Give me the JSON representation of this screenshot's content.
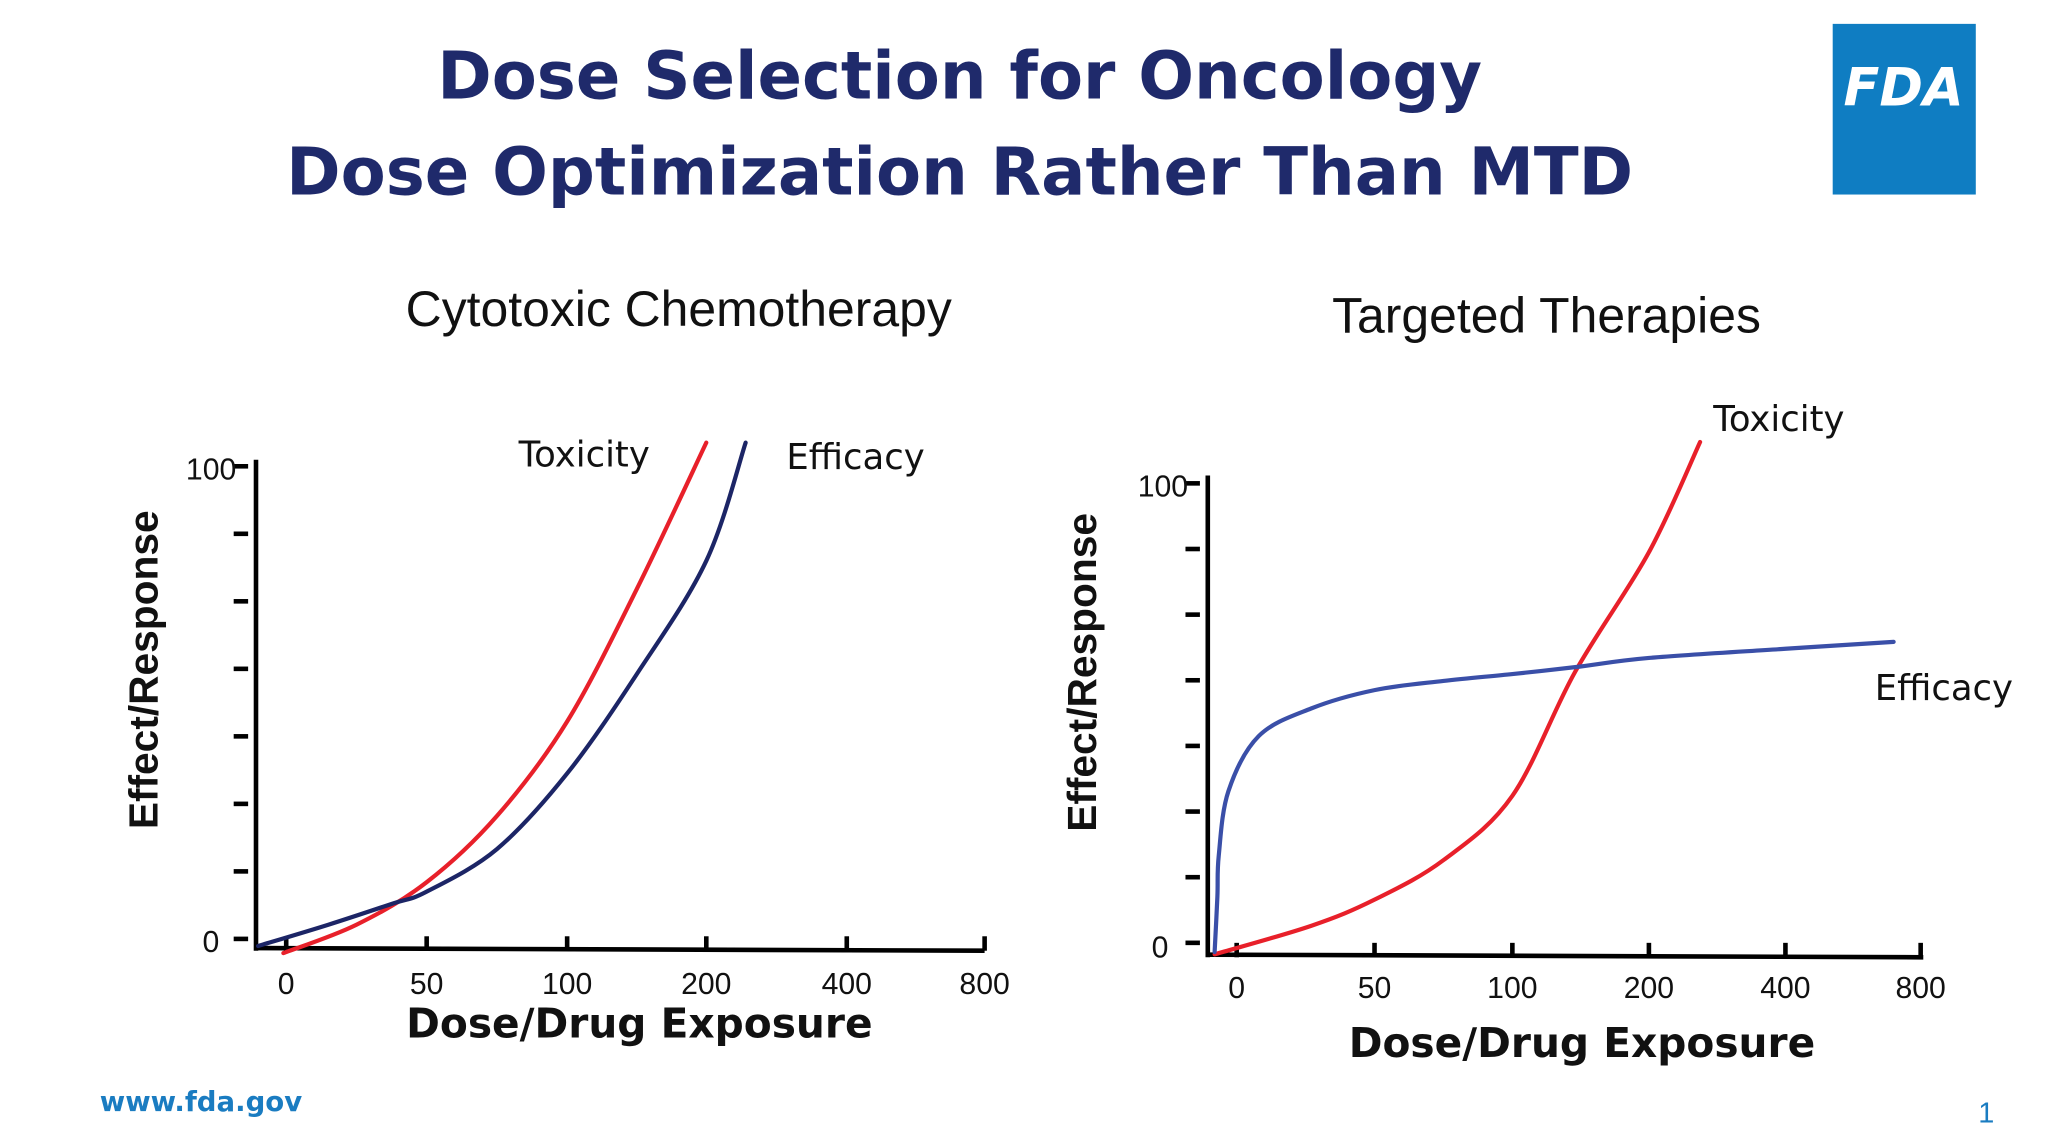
{
  "slide": {
    "title_lines": [
      "Dose Selection for Oncology",
      "Dose Optimization Rather Than MTD"
    ],
    "logo_text": "FDA",
    "logo_color": "#0f7dc2",
    "title_color": "#1f2a6b",
    "footer_url": "www.fda.gov",
    "page_number": "1"
  },
  "chart_data": [
    {
      "type": "line",
      "title": "Cytotoxic Chemotherapy",
      "xlabel": "Dose/Drug Exposure",
      "ylabel": "Effect/Response",
      "x_ticks": [
        "0",
        "50",
        "100",
        "200",
        "400",
        "800"
      ],
      "x_tick_values": [
        0,
        50,
        100,
        200,
        400,
        800
      ],
      "y_ticks": [
        "0",
        "100"
      ],
      "ylim": [
        0,
        100
      ],
      "y_minor_ticks": 7,
      "grid": false,
      "series": [
        {
          "name": "Toxicity",
          "color": "#e8202a",
          "points": [
            [
              -1,
              -3
            ],
            [
              25,
              3
            ],
            [
              50,
              12
            ],
            [
              75,
              26
            ],
            [
              100,
              46
            ],
            [
              150,
              74
            ],
            [
              200,
              105
            ]
          ]
        },
        {
          "name": "Efficacy",
          "color": "#1c2566",
          "points": [
            [
              -10,
              -1.5
            ],
            [
              15,
              3
            ],
            [
              38,
              7.5
            ],
            [
              50,
              10
            ],
            [
              75,
              19
            ],
            [
              100,
              35
            ],
            [
              150,
              56
            ],
            [
              200,
              80
            ],
            [
              256,
              105
            ]
          ]
        }
      ]
    },
    {
      "type": "line",
      "title": "Targeted Therapies",
      "xlabel": "Dose/Drug Exposure",
      "ylabel": "Effect/Response",
      "x_ticks": [
        "0",
        "50",
        "100",
        "200",
        "400",
        "800"
      ],
      "x_tick_values": [
        0,
        50,
        100,
        200,
        400,
        800
      ],
      "y_ticks": [
        "0",
        "100"
      ],
      "ylim": [
        0,
        100
      ],
      "y_minor_ticks": 7,
      "grid": false,
      "series": [
        {
          "name": "Toxicity",
          "color": "#e8202a",
          "points": [
            [
              -8,
              -2.5
            ],
            [
              27,
              3.7
            ],
            [
              50,
              9.4
            ],
            [
              75,
              18
            ],
            [
              100,
              32
            ],
            [
              146,
              59
            ],
            [
              200,
              85
            ],
            [
              275,
              109
            ]
          ]
        },
        {
          "name": "Efficacy",
          "color": "#3a4fa8",
          "points": [
            [
              -8,
              -2
            ],
            [
              -7,
              10
            ],
            [
              -6.5,
              19
            ],
            [
              -3,
              33
            ],
            [
              8,
              45
            ],
            [
              27,
              51
            ],
            [
              50,
              55
            ],
            [
              75,
              57
            ],
            [
              100,
              58.5
            ],
            [
              146,
              60
            ],
            [
              200,
              62
            ],
            [
              400,
              64
            ],
            [
              720,
              65.5
            ]
          ]
        }
      ]
    }
  ]
}
